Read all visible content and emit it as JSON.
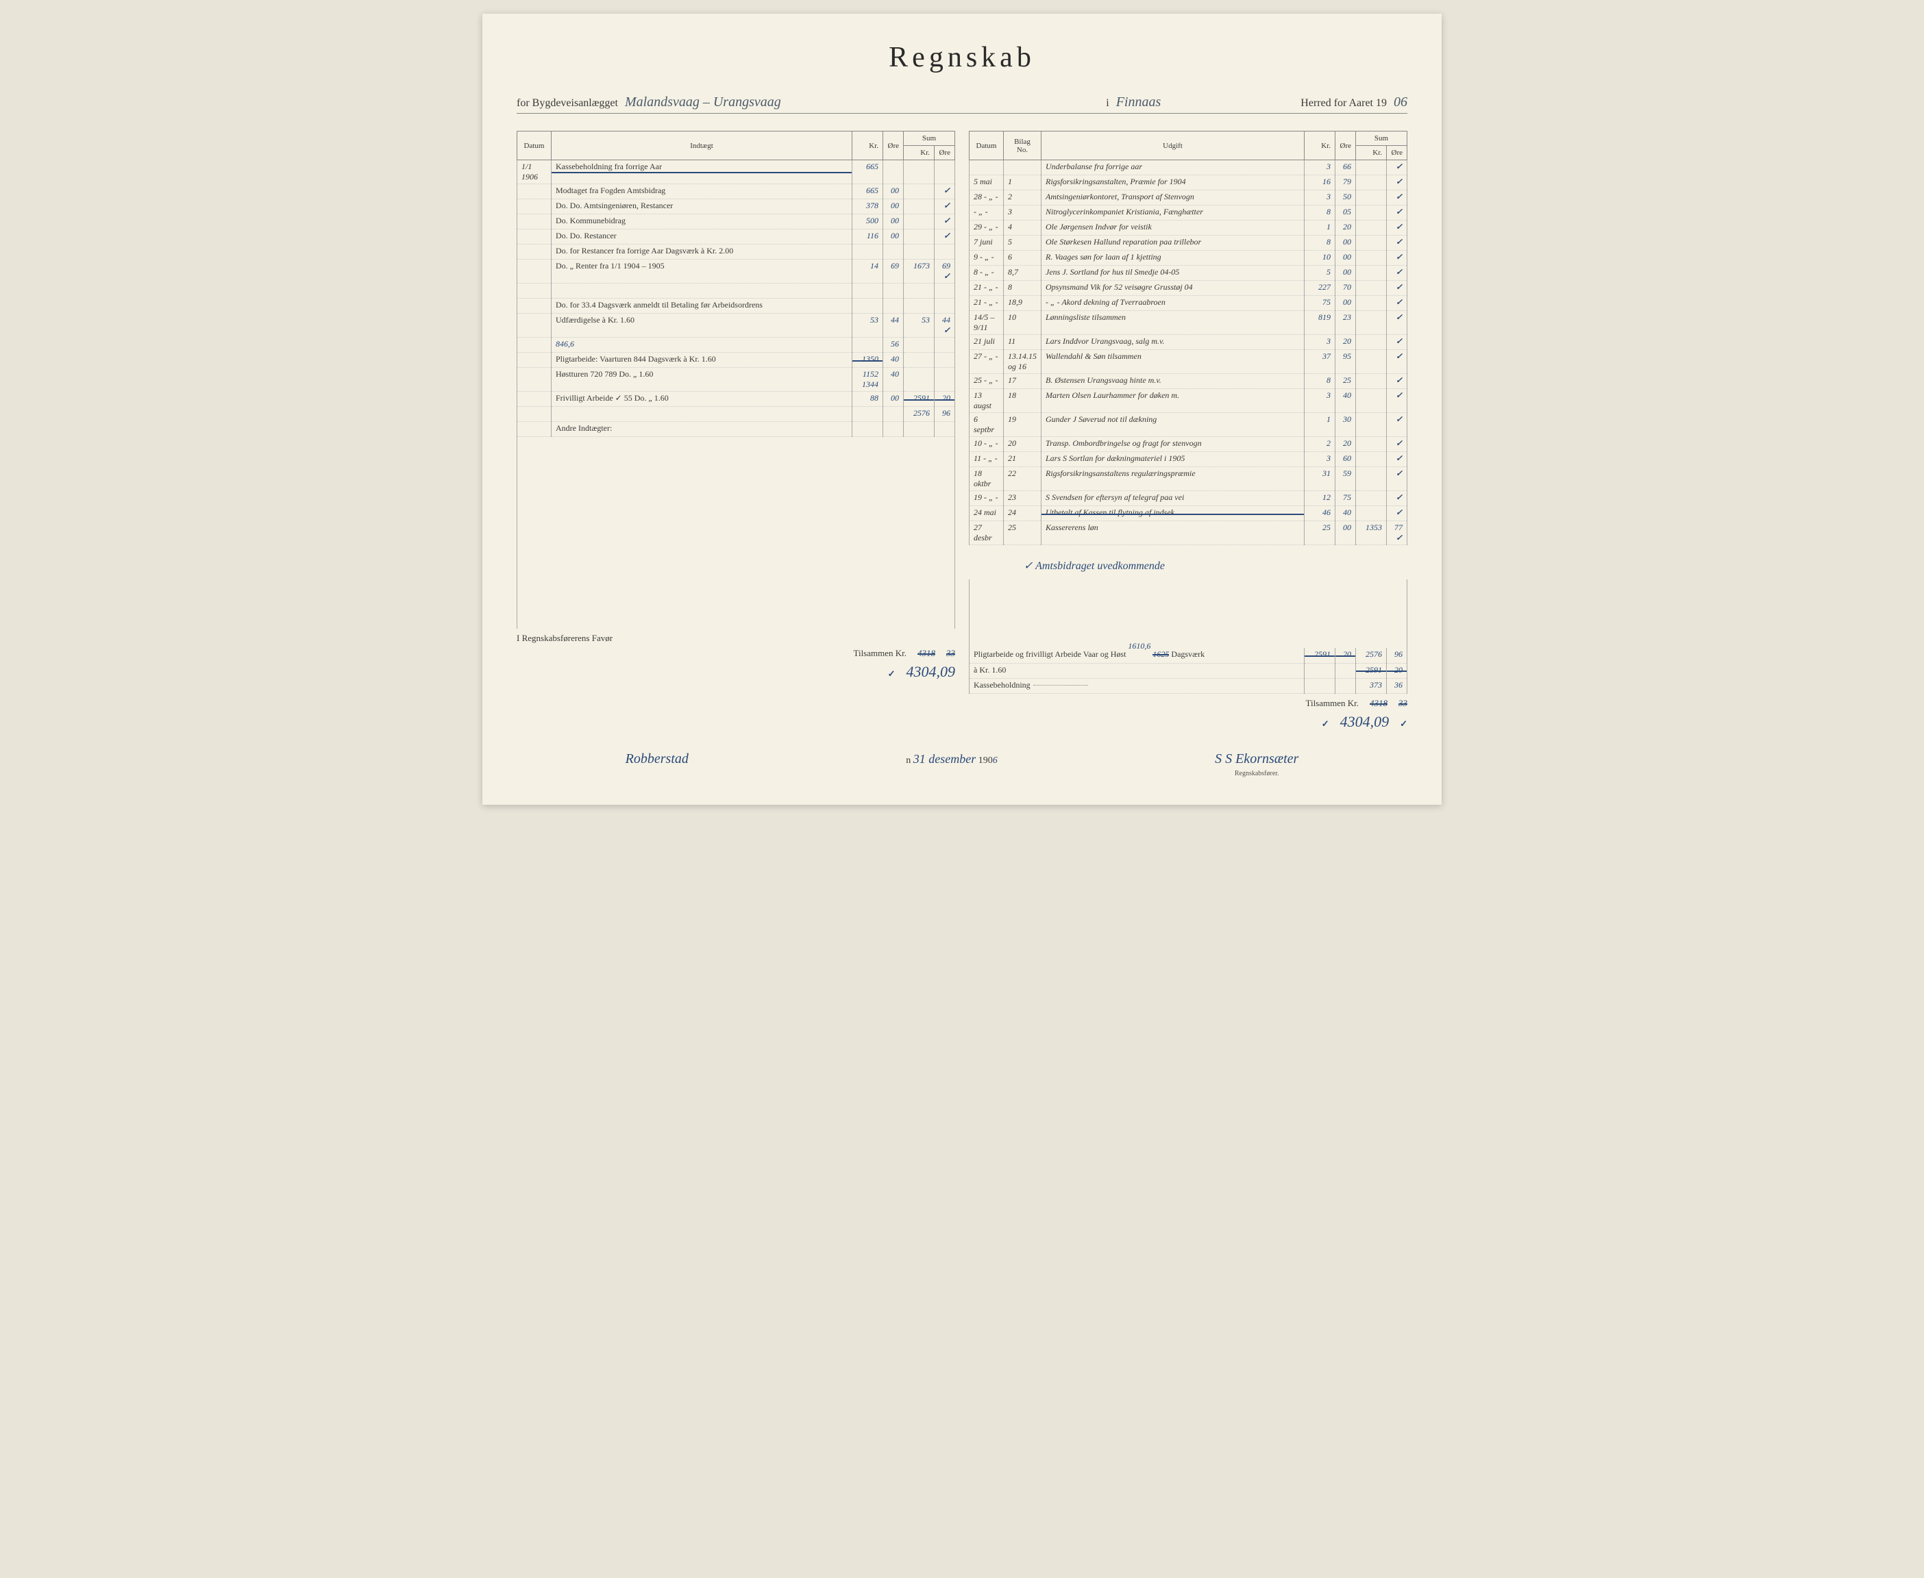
{
  "title": "Regnskab",
  "header": {
    "prefix1": "for Bygdeveisanlægget",
    "road_name": "Malandsvaag – Urangsvaag",
    "prefix2": "i",
    "district": "Finnaas",
    "prefix3": "Herred for Aaret 19",
    "year_suffix": "06"
  },
  "left_header": {
    "datum": "Datum",
    "indtaegt": "Indtægt",
    "kr": "Kr.",
    "ore": "Øre",
    "sum": "Sum",
    "sum_kr": "Kr.",
    "sum_ore": "Øre"
  },
  "right_header": {
    "datum": "Datum",
    "bilag": "Bilag No.",
    "udgift": "Udgift",
    "kr": "Kr.",
    "ore": "Øre",
    "sum": "Sum",
    "sum_kr": "Kr.",
    "sum_ore": "Øre"
  },
  "left_rows": [
    {
      "date": "1/1 1906",
      "desc": "Kassebeholdning fra forrige Aar",
      "strike": true,
      "kr": "665",
      "ore": "",
      "sumkr": "",
      "sumore": ""
    },
    {
      "date": "",
      "desc": "Modtaget fra Fogden Amtsbidrag",
      "kr": "665",
      "ore": "00",
      "check": true
    },
    {
      "date": "",
      "desc": "Do.    Do.    Amtsingeniøren, Restancer",
      "kr": "378",
      "ore": "00",
      "check": true
    },
    {
      "date": "",
      "desc": "Do.    Kommunebidrag",
      "kr": "500",
      "ore": "00",
      "check": true
    },
    {
      "date": "",
      "desc": "Do.    Do.    Restancer",
      "kr": "116",
      "ore": "00",
      "check": true
    },
    {
      "date": "",
      "desc": "Do.    for Restancer fra forrige Aar     Dagsværk à Kr. 2.00",
      "kr": "",
      "ore": ""
    },
    {
      "date": "",
      "desc": "Do.    „  Renter fra 1/1 1904 – 1905",
      "kr": "14",
      "ore": "69",
      "sumkr": "1673",
      "sumore": "69",
      "check": true
    },
    {
      "date": "",
      "desc": "",
      "kr": "",
      "ore": ""
    },
    {
      "date": "",
      "desc": "Do.    for 33.4 Dagsværk anmeldt til Betaling før Arbeidsordrens",
      "kr": "",
      "ore": ""
    },
    {
      "date": "",
      "desc": "          Udfærdigelse à Kr. 1.60",
      "kr": "53",
      "ore": "44",
      "sumkr": "53",
      "sumore": "44",
      "check": true
    },
    {
      "date": "",
      "desc": "                    846,6",
      "kr": "",
      "ore": "56",
      "handnote": true
    },
    {
      "date": "",
      "desc": "Pligtarbeide: Vaarturen 844 Dagsværk à Kr. 1.60",
      "kr": "1350",
      "ore": "40",
      "strike_kr": true
    },
    {
      "date": "",
      "desc": "              Høstturen 720 789 Do.    „  1.60",
      "kr": "1152 1344",
      "ore": "40"
    },
    {
      "date": "",
      "desc": "Frivilligt Arbeide ✓ 55    Do.    „  1.60",
      "kr": "88",
      "ore": "00",
      "sumkr": "2591",
      "sumore": "20",
      "strike_sum": true
    },
    {
      "date": "",
      "desc": "",
      "kr": "",
      "ore": "",
      "sumkr": "2576",
      "sumore": "96",
      "handnote": true
    },
    {
      "date": "",
      "desc": "Andre Indtægter:",
      "kr": "",
      "ore": ""
    }
  ],
  "right_rows": [
    {
      "date": "",
      "bilag": "",
      "desc": "Underbalanse fra forrige aar",
      "kr": "3",
      "ore": "66",
      "check": true
    },
    {
      "date": "5 mai",
      "bilag": "1",
      "desc": "Rigsforsikringsanstalten, Præmie for 1904",
      "kr": "16",
      "ore": "79",
      "check": true
    },
    {
      "date": "28 - „ -",
      "bilag": "2",
      "desc": "Amtsingeniørkontoret, Transport af Stenvogn",
      "kr": "3",
      "ore": "50",
      "check": true
    },
    {
      "date": "- „ -",
      "bilag": "3",
      "desc": "Nitroglycerinkompaniet Kristiania, Fænghætter",
      "kr": "8",
      "ore": "05",
      "check": true
    },
    {
      "date": "29 - „ -",
      "bilag": "4",
      "desc": "Ole Jørgensen Indvør for veistik",
      "kr": "1",
      "ore": "20",
      "check": true
    },
    {
      "date": "7 juni",
      "bilag": "5",
      "desc": "Ole Størkesen Hallund reparation paa trillebor",
      "kr": "8",
      "ore": "00",
      "check": true
    },
    {
      "date": "9 - „ -",
      "bilag": "6",
      "desc": "R. Vaages søn for laan af 1 kjetting",
      "kr": "10",
      "ore": "00",
      "check": true
    },
    {
      "date": "8 - „ -",
      "bilag": "8,7",
      "desc": "Jens J. Sortland for hus til Smedje 04-05",
      "kr": "5",
      "ore": "00",
      "check": true
    },
    {
      "date": "21 - „ -",
      "bilag": "8",
      "desc": "Opsynsmand Vik for 52 veisøgre Grusstøj 04",
      "kr": "227",
      "ore": "70",
      "check": true
    },
    {
      "date": "21 - „ -",
      "bilag": "18,9",
      "desc": "- „ -  Akord   dekning af Tverraabroen",
      "kr": "75",
      "ore": "00",
      "check": true
    },
    {
      "date": "14/5 – 9/11",
      "bilag": "10",
      "desc": "Lønningsliste   tilsammen",
      "kr": "819",
      "ore": "23",
      "check": true
    },
    {
      "date": "21 juli",
      "bilag": "11",
      "desc": "Lars Inddvor Urangsvaag, salg m.v.",
      "kr": "3",
      "ore": "20",
      "check": true
    },
    {
      "date": "27 - „ -",
      "bilag": "13.14.15 og 16",
      "desc": "Wallendahl & Søn tilsammen",
      "kr": "37",
      "ore": "95",
      "check": true
    },
    {
      "date": "25 - „ -",
      "bilag": "17",
      "desc": "B. Østensen Urangsvaag hinte m.v.",
      "kr": "8",
      "ore": "25",
      "check": true
    },
    {
      "date": "13 augst",
      "bilag": "18",
      "desc": "Marten Olsen Laurhammer for døken m.",
      "kr": "3",
      "ore": "40",
      "check": true
    },
    {
      "date": "6 septbr",
      "bilag": "19",
      "desc": "Gunder J Søverud not til dækning",
      "kr": "1",
      "ore": "30",
      "check": true
    },
    {
      "date": "10 - „ -",
      "bilag": "20",
      "desc": "Transp. Ombordbringelse og fragt for stenvogn",
      "kr": "2",
      "ore": "20",
      "check": true
    },
    {
      "date": "11 - „ -",
      "bilag": "21",
      "desc": "Lars S Sortlan for dækningmateriel i 1905",
      "kr": "3",
      "ore": "60",
      "check": true
    },
    {
      "date": "18 oktbr",
      "bilag": "22",
      "desc": "Rigsforsikringsanstaltens regulæringspræmie",
      "kr": "31",
      "ore": "59",
      "check": true
    },
    {
      "date": "19 - „ -",
      "bilag": "23",
      "desc": "S Svendsen for eftersyn af telegraf paa vei",
      "kr": "12",
      "ore": "75",
      "check": true
    },
    {
      "date": "24 mai",
      "bilag": "24",
      "desc": "Utbetalt af Kassen til flytning af indsek",
      "kr": "46",
      "ore": "40",
      "check": true,
      "strike": true
    },
    {
      "date": "27 desbr",
      "bilag": "25",
      "desc": "Kassererens løn",
      "kr": "25",
      "ore": "00",
      "sumkr": "1353",
      "sumore": "77",
      "check": true
    }
  ],
  "right_note": "✓ Amtsbidraget uvedkommende",
  "right_footer": {
    "line1_label": "Pligtarbeide og frivilligt Arbeide Vaar og Høst",
    "line1_hand": "1610,6",
    "line1_dagsv": "1625",
    "line1_dagsv_strike": true,
    "line1_suffix": "Dagsværk",
    "line1b": "à Kr. 1.60",
    "line1_kr": "2591",
    "line1_kr_strike": true,
    "line1_ore": "20",
    "line1_ore_strike": true,
    "line1_sumkr": "2591",
    "line1_sumore": "20",
    "line1_sum_strike": true,
    "line1_alt_sumkr": "2576",
    "line1_alt_sumore": "96",
    "line2_label": "Kassebeholdning",
    "line2_sumkr": "373",
    "line2_sumore": "36",
    "tilsammen_label": "Tilsammen Kr.",
    "tilsammen_kr": "4318",
    "tilsammen_ore": "33",
    "tilsammen_strike": true,
    "grand_total": "4304,09"
  },
  "left_footer": {
    "favor_label": "I Regnskabsførerens Favør",
    "tilsammen_label": "Tilsammen Kr.",
    "tilsammen_kr": "4318",
    "tilsammen_ore": "33",
    "tilsammen_strike": true,
    "grand_total": "4304,09"
  },
  "signature": {
    "place": "Robberstad",
    "date_label": "n",
    "date_hand": "31 desember",
    "year_prefix": "190",
    "year_suffix": "6",
    "name": "S S Ekornsæter",
    "role": "Regnskabsfører."
  },
  "colors": {
    "paper": "#f5f1e4",
    "print": "#3a3a3a",
    "blue_ink": "#2a4a7a",
    "rule": "#888888"
  }
}
